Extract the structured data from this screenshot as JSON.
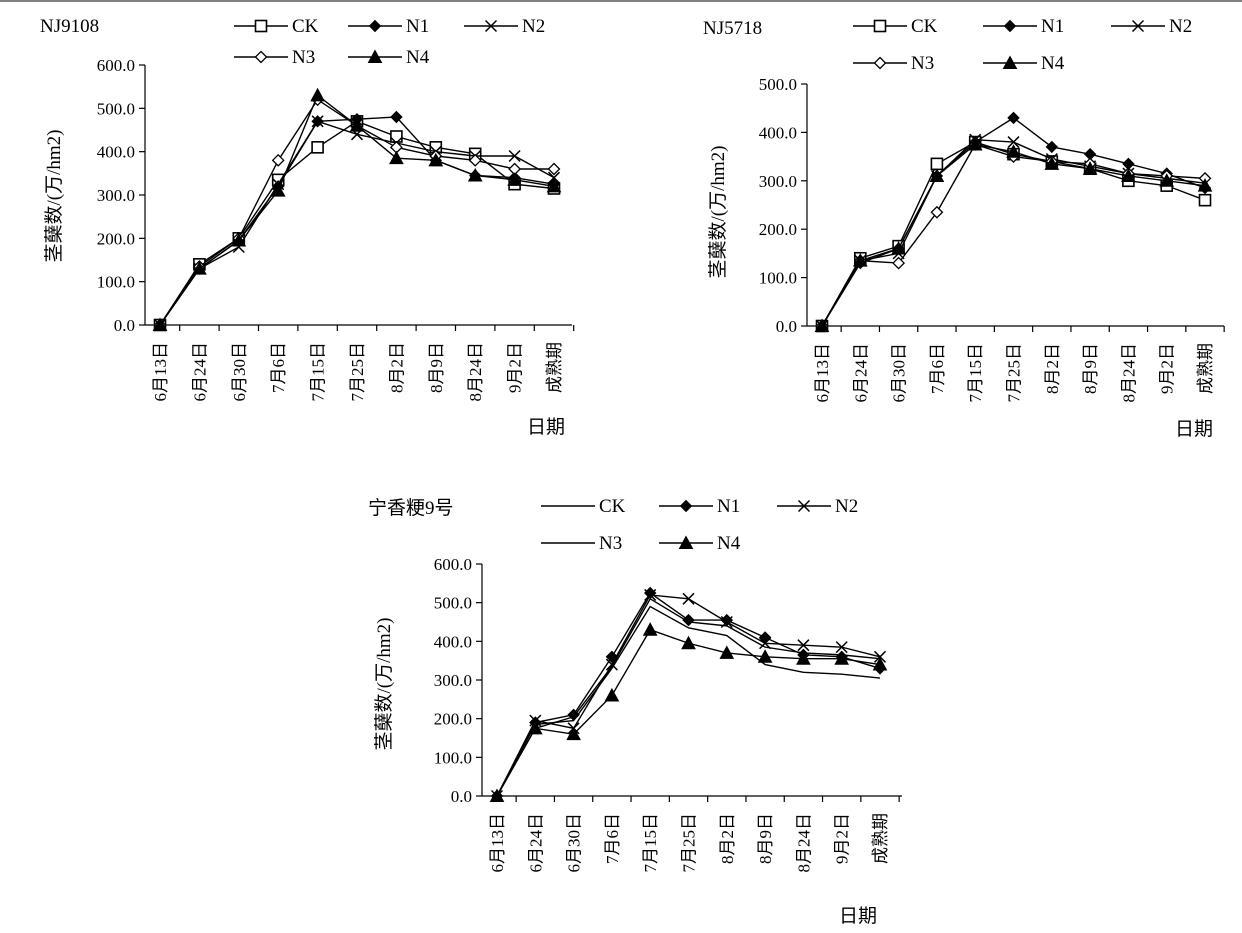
{
  "charts": [
    {
      "chart_data": {
        "type": "line",
        "title": "NJ9108",
        "xlabel": "日期",
        "ylabel": "茎蘖数/(万/hm2)",
        "categories": [
          "6月13日",
          "6月24日",
          "6月30日",
          "7月6日",
          "7月15日",
          "7月25日",
          "8月2日",
          "8月9日",
          "8月24日",
          "9月2日",
          "成熟期"
        ],
        "ylim": [
          0,
          600
        ],
        "yticks": [
          "0.0",
          "100.0",
          "200.0",
          "300.0",
          "400.0",
          "500.0",
          "600.0"
        ],
        "grid": false,
        "legend_placement": "top",
        "series": [
          {
            "name": "CK",
            "marker": "square",
            "values": [
              0,
              140,
              200,
              335,
              410,
              470,
              435,
              410,
              395,
              325,
              315
            ]
          },
          {
            "name": "N1",
            "marker": "diamond",
            "values": [
              0,
              130,
              195,
              320,
              470,
              475,
              480,
              380,
              345,
              340,
              325
            ]
          },
          {
            "name": "N2",
            "marker": "x",
            "values": [
              0,
              130,
              180,
              325,
              470,
              440,
              420,
              400,
              390,
              390,
              340
            ]
          },
          {
            "name": "N3",
            "marker": "diamond-open",
            "values": [
              0,
              135,
              200,
              380,
              520,
              460,
              410,
              390,
              380,
              360,
              360
            ]
          },
          {
            "name": "N4",
            "marker": "triangle",
            "values": [
              0,
              130,
              195,
              310,
              530,
              460,
              385,
              380,
              345,
              335,
              320
            ]
          }
        ]
      }
    },
    {
      "chart_data": {
        "type": "line",
        "title": "NJ5718",
        "xlabel": "日期",
        "ylabel": "茎蘖数/(万/hm2)",
        "categories": [
          "6月13日",
          "6月24日",
          "6月30日",
          "7月6日",
          "7月15日",
          "7月25日",
          "8月2日",
          "8月9日",
          "8月24日",
          "9月2日",
          "成熟期"
        ],
        "ylim": [
          0,
          500
        ],
        "yticks": [
          "0.0",
          "100.0",
          "200.0",
          "300.0",
          "400.0",
          "500.0"
        ],
        "grid": false,
        "legend_placement": "top",
        "series": [
          {
            "name": "CK",
            "marker": "square",
            "values": [
              0,
              140,
              165,
              335,
              380,
              355,
              340,
              325,
              300,
              290,
              260
            ]
          },
          {
            "name": "N1",
            "marker": "diamond",
            "values": [
              0,
              130,
              160,
              310,
              380,
              430,
              370,
              355,
              335,
              315,
              285
            ]
          },
          {
            "name": "N2",
            "marker": "x",
            "values": [
              0,
              135,
              150,
              310,
              385,
              380,
              345,
              330,
              315,
              305,
              295
            ]
          },
          {
            "name": "N3",
            "marker": "diamond-open",
            "values": [
              0,
              135,
              130,
              235,
              375,
              350,
              340,
              335,
              315,
              310,
              305
            ]
          },
          {
            "name": "N4",
            "marker": "triangle",
            "values": [
              0,
              135,
              160,
              310,
              375,
              360,
              335,
              325,
              310,
              300,
              290
            ]
          }
        ]
      }
    },
    {
      "chart_data": {
        "type": "line",
        "title": "宁香粳9号",
        "xlabel": "日期",
        "ylabel": "茎蘖数/(万/hm2)",
        "categories": [
          "6月13日",
          "6月24日",
          "6月30日",
          "7月6日",
          "7月15日",
          "7月25日",
          "8月2日",
          "8月9日",
          "8月24日",
          "9月2日",
          "成熟期"
        ],
        "ylim": [
          0,
          600
        ],
        "yticks": [
          "0.0",
          "100.0",
          "200.0",
          "300.0",
          "400.0",
          "500.0",
          "600.0"
        ],
        "grid": false,
        "legend_placement": "top",
        "series": [
          {
            "name": "CK",
            "marker": "none",
            "values": [
              0,
              185,
              195,
              330,
              490,
              435,
              415,
              340,
              320,
              315,
              305
            ]
          },
          {
            "name": "N1",
            "marker": "diamond",
            "values": [
              0,
              190,
              210,
              360,
              525,
              455,
              455,
              410,
              365,
              360,
              330
            ]
          },
          {
            "name": "N2",
            "marker": "x",
            "values": [
              0,
              195,
              175,
              340,
              520,
              510,
              450,
              395,
              390,
              385,
              360
            ]
          },
          {
            "name": "N3",
            "marker": "none",
            "values": [
              0,
              175,
              205,
              335,
              510,
              450,
              440,
              385,
              370,
              365,
              355
            ]
          },
          {
            "name": "N4",
            "marker": "triangle",
            "values": [
              0,
              175,
              160,
              260,
              430,
              395,
              370,
              360,
              355,
              355,
              340
            ]
          }
        ]
      }
    }
  ]
}
